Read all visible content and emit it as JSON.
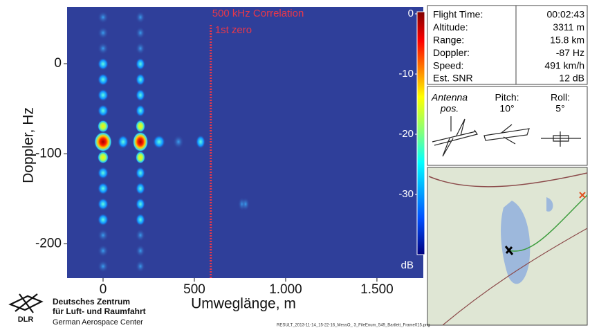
{
  "chart_data": {
    "type": "heatmap",
    "ylabel": "Doppler, Hz",
    "xlabel": "Umweglänge, m",
    "xlim": [
      -197,
      1754
    ],
    "ylim": [
      -238,
      63
    ],
    "xticks": [
      0,
      500,
      {
        "value": 1000,
        "label": "1.000"
      },
      {
        "value": 1500,
        "label": "1.500"
      }
    ],
    "yticks": [
      0,
      -100,
      -200
    ],
    "colorbar": {
      "lim": [
        -40,
        0
      ],
      "ticks": [
        0,
        -10,
        -20,
        -30
      ],
      "label": "dB"
    },
    "marker_line": {
      "x": 590,
      "label": "500 kHz Correlation",
      "sublabel": "1st zero",
      "color": "#e8384a"
    }
  },
  "flight_info": {
    "rows": [
      [
        "Flight Time:",
        "00:02:43"
      ],
      [
        "Altitude:",
        "3311 m"
      ],
      [
        "Range:",
        "15.8 km"
      ],
      [
        "Doppler:",
        "-87 Hz"
      ],
      [
        "Speed:",
        "491 km/h"
      ],
      [
        "Est. SNR",
        "12 dB"
      ]
    ]
  },
  "attitude": {
    "antenna": "Antenna",
    "antenna_sub": "pos.",
    "pitch_label": "Pitch:",
    "pitch": "10°",
    "roll_label": "Roll:",
    "roll": "5°"
  },
  "logo": {
    "mark": "DLR",
    "line1": "Deutsches Zentrum",
    "line2": "für Luft- und Raumfahrt",
    "line3": "German Aerospace Center"
  },
  "filename": "RESULT_2013-11-14_15-22-16_MessO_ 3_FileEnum_549_Bartlett_Frame015.png"
}
